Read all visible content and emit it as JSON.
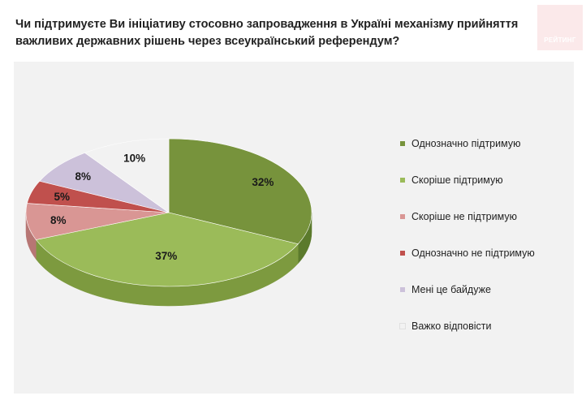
{
  "header": {
    "title": "Чи підтримуєте Ви ініціативу стосовно запровадження в Україні механізму прийняття важливих державних рішень через всеукраїнський референдум?",
    "logo_text": "РЕЙТИНГ"
  },
  "chart_data": {
    "type": "pie",
    "style": "3d",
    "title": "Чи підтримуєте Ви ініціативу стосовно запровадження в Україні механізму прийняття важливих державних рішень через всеукраїнський референдум?",
    "legend_position": "right",
    "categories": [
      "Однозначно підтримую",
      "Скоріше підтримую",
      "Скоріше не підтримую",
      "Однозначно не підтримую",
      "Мені це байдуже",
      "Важко відповісти"
    ],
    "values": [
      32,
      37,
      8,
      5,
      8,
      10
    ],
    "labels": [
      "32%",
      "37%",
      "8%",
      "5%",
      "8%",
      "10%"
    ],
    "colors": [
      "#77933c",
      "#9bbb59",
      "#d99694",
      "#c0504d",
      "#ccc1da",
      "#f2f2f2"
    ],
    "side_colors": [
      "#5b7a2c",
      "#7d9a3f",
      "#b77674",
      "#9c3b38",
      "#a99cbc",
      "#cfcfcf"
    ]
  }
}
